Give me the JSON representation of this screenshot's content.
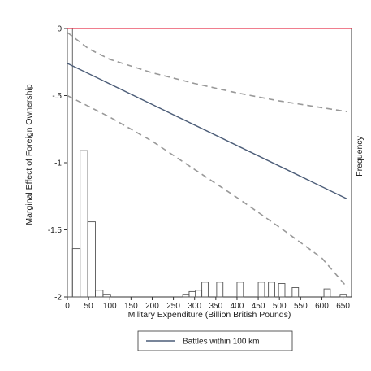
{
  "chart_data": {
    "type": "line",
    "title": "",
    "xlabel": "Military Expenditure (Billion British Pounds)",
    "ylabel": "Marginal Effect of Foreign Ownership",
    "y2label": "Frequency",
    "xlim": [
      0,
      670
    ],
    "ylim": [
      -2.0,
      0.0
    ],
    "xticks": [
      0,
      50,
      100,
      150,
      200,
      250,
      300,
      350,
      400,
      450,
      500,
      550,
      600,
      650
    ],
    "yticks": [
      0,
      -0.5,
      -1,
      -1.5,
      -2
    ],
    "ytick_labels": [
      "0",
      "-.5",
      "-1",
      "-1.5",
      "-2"
    ],
    "grid": false,
    "legend_position": "bottom",
    "reference_line": {
      "y": 0,
      "color": "#e8304a"
    },
    "series": [
      {
        "name": "Battles within 100 km",
        "style": "solid",
        "color": "#4c5d78",
        "x": [
          0,
          660
        ],
        "y": [
          -0.26,
          -1.27
        ]
      },
      {
        "name": "",
        "style": "dashed",
        "color": "#999999",
        "x": [
          0,
          50,
          100,
          200,
          300,
          400,
          500,
          600,
          660
        ],
        "y": [
          -0.03,
          -0.15,
          -0.23,
          -0.33,
          -0.41,
          -0.48,
          -0.54,
          -0.59,
          -0.62
        ]
      },
      {
        "name": "",
        "style": "dashed",
        "color": "#999999",
        "x": [
          0,
          50,
          100,
          200,
          300,
          400,
          500,
          600,
          660
        ],
        "y": [
          -0.5,
          -0.58,
          -0.66,
          -0.84,
          -1.05,
          -1.26,
          -1.48,
          -1.71,
          -1.93
        ]
      }
    ],
    "histogram": {
      "edgecolor": "#555555",
      "bars": [
        {
          "x0": 0,
          "x1": 12,
          "top": 0.0
        },
        {
          "x0": 12,
          "x1": 30,
          "top": -1.64
        },
        {
          "x0": 30,
          "x1": 48,
          "top": -0.91
        },
        {
          "x0": 48,
          "x1": 66,
          "top": -1.44
        },
        {
          "x0": 66,
          "x1": 84,
          "top": -1.95
        },
        {
          "x0": 84,
          "x1": 102,
          "top": -1.98
        },
        {
          "x0": 272,
          "x1": 287,
          "top": -1.98
        },
        {
          "x0": 287,
          "x1": 302,
          "top": -1.96
        },
        {
          "x0": 302,
          "x1": 317,
          "top": -1.95
        },
        {
          "x0": 317,
          "x1": 332,
          "top": -1.89
        },
        {
          "x0": 352,
          "x1": 367,
          "top": -1.89
        },
        {
          "x0": 400,
          "x1": 415,
          "top": -1.89
        },
        {
          "x0": 450,
          "x1": 465,
          "top": -1.89
        },
        {
          "x0": 474,
          "x1": 489,
          "top": -1.89
        },
        {
          "x0": 498,
          "x1": 513,
          "top": -1.9
        },
        {
          "x0": 530,
          "x1": 545,
          "top": -1.93
        },
        {
          "x0": 605,
          "x1": 620,
          "top": -1.94
        },
        {
          "x0": 643,
          "x1": 658,
          "top": -1.98
        }
      ]
    }
  }
}
